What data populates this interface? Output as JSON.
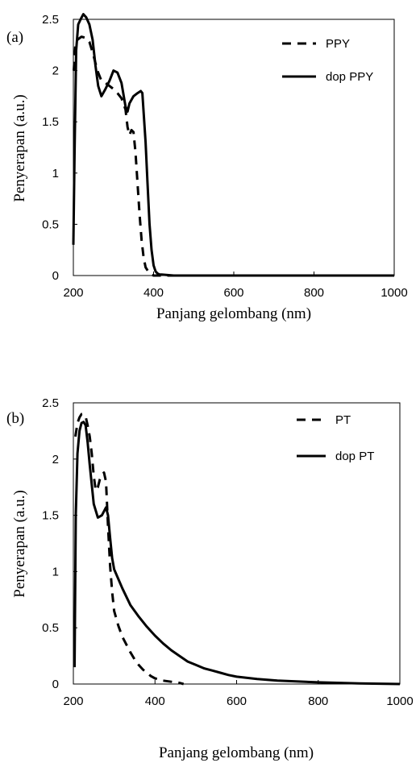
{
  "chart_data": [
    {
      "type": "line",
      "panel_label": "(a)",
      "xlabel": "Panjang gelombang (nm)",
      "ylabel": "Penyerapan (a.u.)",
      "xlim": [
        200,
        1000
      ],
      "ylim": [
        0,
        2.5
      ],
      "x_ticks": [
        "200",
        "400",
        "600",
        "800",
        "1000"
      ],
      "y_ticks": [
        "0",
        "0.5",
        "1",
        "1.5",
        "2",
        "2.5"
      ],
      "grid": false,
      "legend_position": "top-right",
      "series": [
        {
          "name": "PPY",
          "style": "dashed",
          "x": [
            201,
            205,
            210,
            220,
            230,
            240,
            250,
            260,
            270,
            280,
            290,
            300,
            310,
            320,
            330,
            335,
            340,
            345,
            350,
            355,
            360,
            365,
            370,
            375,
            380,
            390,
            400,
            410,
            420,
            500,
            1000
          ],
          "y": [
            2.0,
            2.25,
            2.3,
            2.33,
            2.32,
            2.28,
            2.15,
            2.0,
            1.9,
            1.88,
            1.85,
            1.82,
            1.78,
            1.73,
            1.62,
            1.45,
            1.37,
            1.42,
            1.4,
            1.2,
            0.9,
            0.6,
            0.35,
            0.18,
            0.08,
            0.02,
            0.0,
            0.0,
            0.0,
            0.0,
            0.0
          ]
        },
        {
          "name": "dop PPY",
          "style": "solid",
          "x": [
            200,
            203,
            207,
            212,
            218,
            225,
            232,
            240,
            248,
            255,
            262,
            270,
            280,
            290,
            300,
            310,
            320,
            330,
            335,
            340,
            350,
            360,
            368,
            372,
            375,
            380,
            385,
            390,
            395,
            400,
            405,
            410,
            415,
            420,
            450,
            500,
            1000
          ],
          "y": [
            0.3,
            1.2,
            2.2,
            2.45,
            2.5,
            2.55,
            2.52,
            2.45,
            2.3,
            2.05,
            1.85,
            1.75,
            1.82,
            1.9,
            2.0,
            1.98,
            1.88,
            1.65,
            1.6,
            1.68,
            1.75,
            1.78,
            1.8,
            1.78,
            1.6,
            1.3,
            0.9,
            0.5,
            0.25,
            0.1,
            0.04,
            0.02,
            0.01,
            0.01,
            0.0,
            0.0,
            0.0
          ]
        }
      ]
    },
    {
      "type": "line",
      "panel_label": "(b)",
      "xlabel": "Panjang gelombang (nm)",
      "ylabel": "Penyerapan (a.u.)",
      "xlim": [
        200,
        1000
      ],
      "ylim": [
        0,
        2.5
      ],
      "x_ticks": [
        "200",
        "400",
        "600",
        "800",
        "1000"
      ],
      "y_ticks": [
        "0",
        "0.5",
        "1",
        "1.5",
        "2",
        "2.5"
      ],
      "grid": false,
      "legend_position": "top-right",
      "series": [
        {
          "name": "PT",
          "style": "dashed",
          "x": [
            205,
            210,
            215,
            220,
            225,
            230,
            235,
            240,
            245,
            250,
            255,
            260,
            265,
            270,
            275,
            280,
            285,
            290,
            295,
            300,
            310,
            320,
            330,
            340,
            350,
            360,
            370,
            380,
            390,
            400,
            420,
            440,
            460,
            470
          ],
          "y": [
            2.2,
            2.32,
            2.37,
            2.4,
            2.4,
            2.38,
            2.3,
            2.2,
            2.05,
            1.85,
            1.72,
            1.75,
            1.82,
            1.86,
            1.88,
            1.8,
            1.4,
            1.05,
            0.82,
            0.65,
            0.52,
            0.42,
            0.35,
            0.28,
            0.22,
            0.17,
            0.13,
            0.1,
            0.07,
            0.05,
            0.03,
            0.02,
            0.01,
            0.0
          ]
        },
        {
          "name": "dop PT",
          "style": "solid",
          "x": [
            203,
            206,
            210,
            215,
            220,
            225,
            230,
            235,
            240,
            250,
            260,
            270,
            280,
            285,
            290,
            295,
            300,
            320,
            340,
            360,
            380,
            400,
            420,
            440,
            460,
            480,
            500,
            520,
            540,
            560,
            580,
            600,
            650,
            700,
            800,
            900,
            1000
          ],
          "y": [
            0.15,
            1.5,
            2.05,
            2.25,
            2.32,
            2.33,
            2.3,
            2.15,
            1.95,
            1.6,
            1.48,
            1.5,
            1.57,
            1.5,
            1.3,
            1.12,
            1.02,
            0.85,
            0.7,
            0.6,
            0.51,
            0.43,
            0.36,
            0.3,
            0.25,
            0.2,
            0.17,
            0.14,
            0.12,
            0.1,
            0.08,
            0.065,
            0.045,
            0.03,
            0.015,
            0.006,
            0.0
          ]
        }
      ]
    }
  ]
}
